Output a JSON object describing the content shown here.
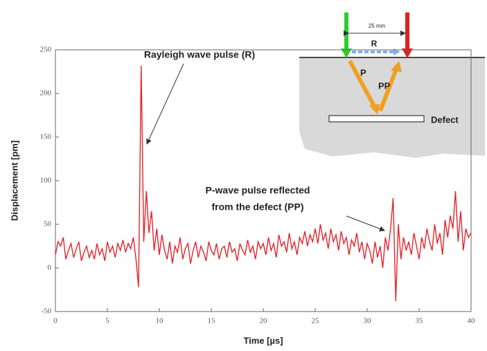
{
  "chart_data": {
    "type": "line",
    "xlabel": "Time [µs]",
    "ylabel": "Displacement [pm]",
    "xlim": [
      0,
      40
    ],
    "ylim": [
      -50,
      250
    ],
    "xticks": [
      0,
      5,
      10,
      15,
      20,
      25,
      30,
      35,
      40
    ],
    "yticks": [
      -50,
      0,
      50,
      100,
      150,
      200,
      250
    ],
    "color": "#e5222b",
    "x": [
      0,
      0.25,
      0.5,
      0.75,
      1,
      1.25,
      1.5,
      1.75,
      2,
      2.25,
      2.5,
      2.75,
      3,
      3.25,
      3.5,
      3.75,
      4,
      4.25,
      4.5,
      4.75,
      5,
      5.25,
      5.5,
      5.75,
      6,
      6.25,
      6.5,
      6.75,
      7,
      7.25,
      7.5,
      7.75,
      8,
      8.25,
      8.5,
      8.75,
      9,
      9.25,
      9.5,
      9.75,
      10,
      10.25,
      10.5,
      10.75,
      11,
      11.25,
      11.5,
      11.75,
      12,
      12.25,
      12.5,
      12.75,
      13,
      13.25,
      13.5,
      13.75,
      14,
      14.25,
      14.5,
      14.75,
      15,
      15.25,
      15.5,
      15.75,
      16,
      16.25,
      16.5,
      16.75,
      17,
      17.25,
      17.5,
      17.75,
      18,
      18.25,
      18.5,
      18.75,
      19,
      19.25,
      19.5,
      19.75,
      20,
      20.25,
      20.5,
      20.75,
      21,
      21.25,
      21.5,
      21.75,
      22,
      22.25,
      22.5,
      22.75,
      23,
      23.25,
      23.5,
      23.75,
      24,
      24.25,
      24.5,
      24.75,
      25,
      25.25,
      25.5,
      25.75,
      26,
      26.25,
      26.5,
      26.75,
      27,
      27.25,
      27.5,
      27.75,
      28,
      28.25,
      28.5,
      28.75,
      29,
      29.25,
      29.5,
      29.75,
      30,
      30.25,
      30.5,
      30.75,
      31,
      31.25,
      31.5,
      31.75,
      32,
      32.25,
      32.5,
      32.75,
      33,
      33.25,
      33.5,
      33.75,
      34,
      34.25,
      34.5,
      34.75,
      35,
      35.25,
      35.5,
      35.75,
      36,
      36.25,
      36.5,
      36.75,
      37,
      37.25,
      37.5,
      37.75,
      38,
      38.25,
      38.5,
      38.75,
      39,
      39.25,
      39.5,
      39.75,
      40
    ],
    "values": [
      15,
      30,
      25,
      35,
      10,
      20,
      28,
      12,
      22,
      30,
      8,
      18,
      25,
      12,
      20,
      10,
      28,
      15,
      22,
      8,
      30,
      18,
      25,
      12,
      28,
      20,
      32,
      18,
      28,
      22,
      35,
      10,
      -22,
      232,
      30,
      88,
      40,
      65,
      20,
      45,
      15,
      38,
      20,
      10,
      30,
      5,
      25,
      18,
      35,
      10,
      22,
      28,
      5,
      20,
      30,
      12,
      25,
      18,
      8,
      30,
      20,
      15,
      28,
      10,
      22,
      25,
      12,
      30,
      18,
      22,
      8,
      28,
      20,
      15,
      32,
      18,
      25,
      10,
      30,
      22,
      28,
      15,
      35,
      20,
      28,
      12,
      38,
      25,
      30,
      18,
      40,
      22,
      30,
      15,
      35,
      28,
      42,
      25,
      38,
      30,
      45,
      28,
      50,
      32,
      40,
      22,
      45,
      30,
      38,
      20,
      42,
      28,
      35,
      15,
      32,
      25,
      40,
      18,
      30,
      10,
      28,
      20,
      5,
      30,
      12,
      25,
      0,
      35,
      20,
      45,
      80,
      -38,
      50,
      10,
      35,
      20,
      30,
      15,
      40,
      25,
      10,
      35,
      22,
      45,
      30,
      20,
      50,
      28,
      40,
      15,
      55,
      35,
      60,
      45,
      88,
      30,
      65,
      20,
      45,
      35,
      40
    ],
    "annotation_r": "Rayleigh wave pulse (R)",
    "annotation_pp": [
      "P-wave pulse reflected",
      "from the defect (PP)"
    ],
    "inset": {
      "distance": "25 mm",
      "labels": [
        "R",
        "P",
        "PP",
        "Defect"
      ]
    }
  }
}
